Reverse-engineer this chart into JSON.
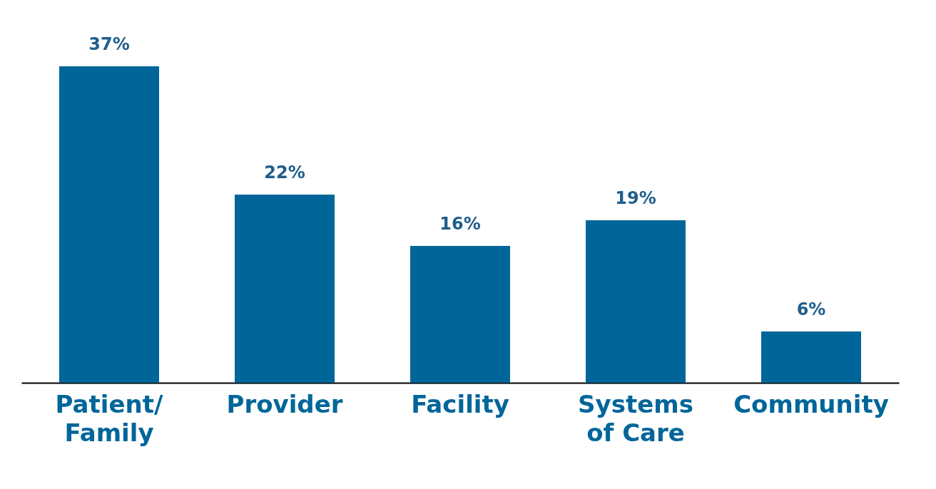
{
  "chart_data": {
    "type": "bar",
    "categories": [
      "Patient/\nFamily",
      "Provider",
      "Facility",
      "Systems\nof Care",
      "Community"
    ],
    "values": [
      37,
      22,
      16,
      19,
      6
    ],
    "value_labels": [
      "37%",
      "22%",
      "16%",
      "19%",
      "6%"
    ],
    "color": "#00669a",
    "grid": false,
    "tick_labels": "x"
  }
}
